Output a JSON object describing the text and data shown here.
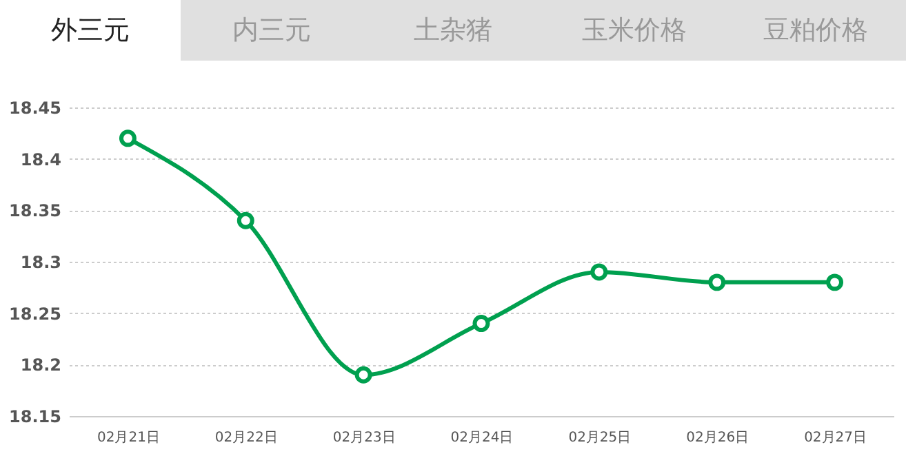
{
  "chart_data": {
    "type": "line",
    "annotations": [
      "外三元",
      "内三元",
      "土杂猪",
      "玉米价格",
      "豆粕价格"
    ],
    "categories": [
      "02月21日",
      "02月22日",
      "02月23日",
      "02月24日",
      "02月25日",
      "02月26日",
      "02月27日"
    ],
    "series": [
      {
        "color": "#00a04f",
        "values": [
          18.42,
          18.34,
          18.19,
          18.24,
          18.29,
          18.28,
          18.28
        ]
      }
    ],
    "ylim": [
      18.15,
      18.45
    ],
    "yticks": [
      {
        "value": 18.15,
        "label": "18.15"
      },
      {
        "value": 18.2,
        "label": "18.2"
      },
      {
        "value": 18.25,
        "label": "18.25"
      },
      {
        "value": 18.3,
        "label": "18.3"
      },
      {
        "value": 18.35,
        "label": "18.35"
      },
      {
        "value": 18.4,
        "label": "18.4"
      },
      {
        "value": 18.45,
        "label": "18.45"
      }
    ],
    "grid": "y",
    "marker": "circle",
    "line_style": "solid"
  }
}
